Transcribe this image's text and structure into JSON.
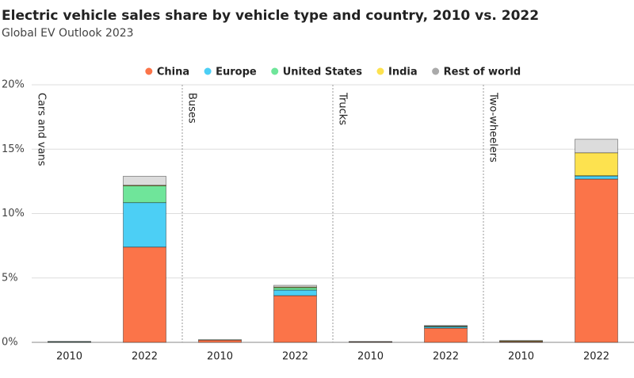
{
  "chart_data": {
    "type": "stacked_bar",
    "title": "Electric vehicle sales share by vehicle type and country, 2010 vs. 2022",
    "subtitle": "Global EV Outlook 2023",
    "groups": [
      "Cars and vans",
      "Buses",
      "Trucks",
      "Two-wheelers"
    ],
    "categories": [
      "2010",
      "2022",
      "2010",
      "2022",
      "2010",
      "2022",
      "2010",
      "2022"
    ],
    "series": [
      {
        "name": "China",
        "color": "#fb7449",
        "values": [
          0.02,
          7.4,
          0.18,
          3.63,
          0.03,
          1.1,
          0.05,
          12.68
        ]
      },
      {
        "name": "Europe",
        "color": "#4ccff5",
        "values": [
          0.02,
          3.45,
          0.01,
          0.43,
          0.01,
          0.1,
          0.01,
          0.24
        ]
      },
      {
        "name": "United States",
        "color": "#6fe59a",
        "values": [
          0.02,
          1.3,
          0.01,
          0.19,
          0.01,
          0.05,
          0,
          0.02
        ]
      },
      {
        "name": "India",
        "color": "#fde24f",
        "values": [
          0,
          0.05,
          0,
          0.05,
          0,
          0.01,
          0.05,
          1.78
        ]
      },
      {
        "name": "Rest of world",
        "color": "#dcdcdc",
        "values": [
          0.01,
          0.7,
          0,
          0.13,
          0.01,
          0.05,
          0.04,
          1.05
        ]
      }
    ],
    "ylim": [
      0,
      20
    ],
    "yticks": [
      {
        "value": 0,
        "label": "0%"
      },
      {
        "value": 5,
        "label": "5%"
      },
      {
        "value": 10,
        "label": "10%"
      },
      {
        "value": 15,
        "label": "15%"
      },
      {
        "value": 20,
        "label": "20%"
      }
    ],
    "grid": true,
    "legend": "top"
  }
}
